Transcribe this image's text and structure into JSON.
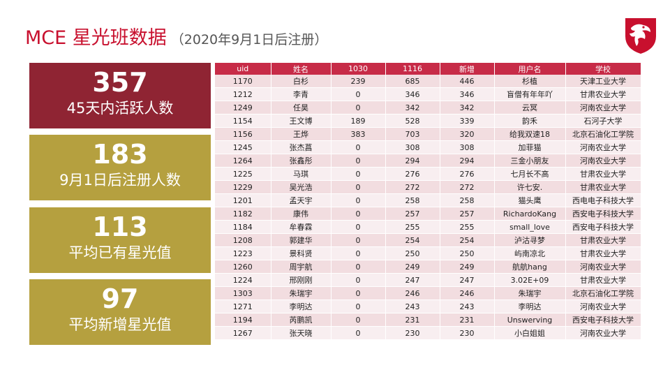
{
  "header": {
    "title": "MCE 星光班数据",
    "subtitle": "（2020年9月1日后注册）"
  },
  "stats": [
    {
      "value": "357",
      "label": "45天内活跃人数"
    },
    {
      "value": "183",
      "label": "9月1日后注册人数"
    },
    {
      "value": "113",
      "label": "平均已有星光值"
    },
    {
      "value": "97",
      "label": "平均新增星光值"
    }
  ],
  "table": {
    "columns": [
      "uid",
      "姓名",
      "1030",
      "1116",
      "新增",
      "用户名",
      "学校"
    ],
    "rows": [
      [
        "1170",
        "白杉",
        "239",
        "685",
        "446",
        "杉植",
        "天津工业大学"
      ],
      [
        "1212",
        "李青",
        "0",
        "346",
        "346",
        "盲僧有年年吖",
        "甘肃农业大学"
      ],
      [
        "1249",
        "任昊",
        "0",
        "342",
        "342",
        "云冥",
        "河南农业大学"
      ],
      [
        "1154",
        "王文博",
        "189",
        "528",
        "339",
        "韵禾",
        "石河子大学"
      ],
      [
        "1156",
        "王烨",
        "383",
        "703",
        "320",
        "给我双速18",
        "北京石油化工学院"
      ],
      [
        "1245",
        "张杰菖",
        "0",
        "308",
        "308",
        "加菲猫",
        "河南农业大学"
      ],
      [
        "1264",
        "张鑫彤",
        "0",
        "294",
        "294",
        "三金小朋友",
        "河南农业大学"
      ],
      [
        "1225",
        "马琪",
        "0",
        "276",
        "276",
        "七月长不高",
        "甘肃农业大学"
      ],
      [
        "1229",
        "吴光浩",
        "0",
        "272",
        "272",
        "许七安.",
        "甘肃农业大学"
      ],
      [
        "1201",
        "孟天宇",
        "0",
        "258",
        "258",
        "猫头鹰",
        "西电电子科技大学"
      ],
      [
        "1182",
        "康伟",
        "0",
        "257",
        "257",
        "RichardoKang",
        "西安电子科技大学"
      ],
      [
        "1184",
        "牟春霖",
        "0",
        "255",
        "255",
        "small_love",
        "西安电子科技大学"
      ],
      [
        "1208",
        "郭建华",
        "0",
        "254",
        "254",
        "泸沽寻梦",
        "甘肃农业大学"
      ],
      [
        "1223",
        "景科贤",
        "0",
        "250",
        "250",
        "屿南凉北",
        "甘肃农业大学"
      ],
      [
        "1260",
        "周宇航",
        "0",
        "249",
        "249",
        "航航hang",
        "河南农业大学"
      ],
      [
        "1224",
        "邢刚刚",
        "0",
        "247",
        "247",
        "3.02E+09",
        "甘肃农业大学"
      ],
      [
        "1303",
        "朱瑞宇",
        "0",
        "246",
        "246",
        "朱瑞宇",
        "北京石油化工学院"
      ],
      [
        "1271",
        "李明达",
        "0",
        "243",
        "243",
        "李明达",
        "河南农业大学"
      ],
      [
        "1194",
        "芮鹏凯",
        "0",
        "231",
        "231",
        "Unswerving",
        "西安电子科技大学"
      ],
      [
        "1267",
        "张天晓",
        "0",
        "230",
        "230",
        "小白姐姐",
        "河南农业大学"
      ]
    ]
  },
  "logo": {
    "icon": "dragon-shield-logo",
    "color": "#c8102e"
  },
  "colors": {
    "accent_red": "#c8102e",
    "card_red": "#8f2433",
    "card_gold": "#b5a03f",
    "table_header": "#c72b47"
  }
}
